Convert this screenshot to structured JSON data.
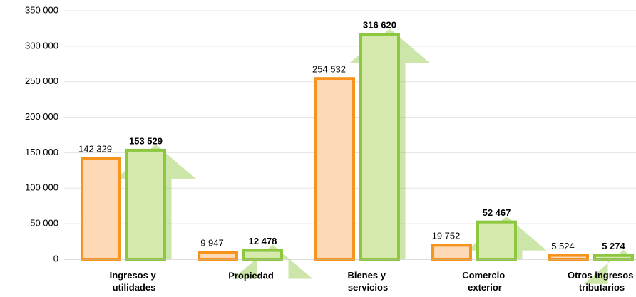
{
  "chart_data": {
    "type": "bar",
    "categories": [
      "Ingresos y utilidades",
      "Propiedad",
      "Bienes y servicios",
      "Comercio exterior",
      "Otros ingresos tributarios"
    ],
    "series": [
      {
        "color": "#f7941d",
        "values": [
          142329,
          9947,
          254532,
          19752,
          5524
        ],
        "value_labels": [
          "142 329",
          "9 947",
          "254 532",
          "19 752",
          "5 524"
        ]
      },
      {
        "color": "#8dc63f",
        "values": [
          153529,
          12478,
          316620,
          52467,
          5274
        ],
        "value_labels": [
          "153 529",
          "12 478",
          "316 620",
          "52 467",
          "5 274"
        ]
      }
    ],
    "ylim": [
      0,
      350000
    ],
    "yticks": [
      0,
      {
        "value": 50000,
        "label": "50 000"
      },
      {
        "value": 100000,
        "label": "100 000"
      },
      {
        "value": 150000,
        "label": "150 000"
      },
      {
        "value": 200000,
        "label": "200 000"
      },
      {
        "value": 250000,
        "label": "250 000"
      },
      {
        "value": 300000,
        "label": "300 000"
      },
      {
        "value": 350000,
        "label": "350 000"
      }
    ],
    "grid": true
  }
}
